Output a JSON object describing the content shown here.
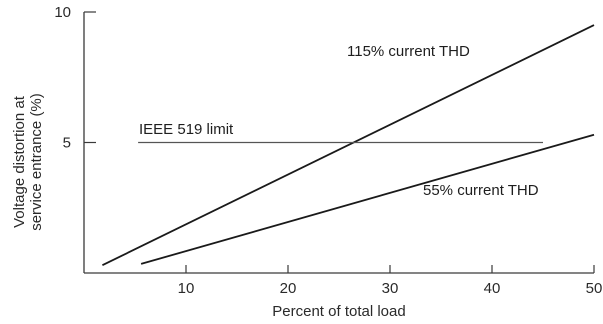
{
  "chart_data": {
    "type": "line",
    "title": "",
    "xlabel": "Percent of total load",
    "ylabel_lines": [
      "Voltage distortion at",
      "service entrance (%)"
    ],
    "xlim": [
      0,
      50
    ],
    "ylim": [
      0,
      10
    ],
    "x_ticks": [
      10,
      20,
      30,
      40,
      50
    ],
    "y_ticks": [
      5,
      10
    ],
    "grid": false,
    "legend": "none",
    "series": [
      {
        "name": "115% current THD",
        "color": "#1a1a1a",
        "x": [
          1.8,
          50
        ],
        "y": [
          0.3,
          9.5
        ]
      },
      {
        "name": "55% current THD",
        "color": "#1a1a1a",
        "x": [
          5.6,
          50
        ],
        "y": [
          0.35,
          5.3
        ]
      },
      {
        "name": "IEEE 519 limit",
        "color": "#555555",
        "x": [
          5.3,
          45
        ],
        "y": [
          5,
          5
        ]
      }
    ]
  }
}
